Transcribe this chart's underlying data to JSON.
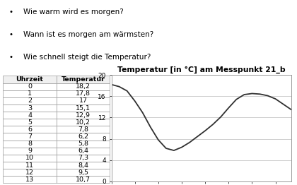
{
  "bullet_points": [
    "Wie warm wird es morgen?",
    "Wann ist es morgen am wärmsten?",
    "Wie schnell steigt die Temperatur?"
  ],
  "table_headers": [
    "Uhrzeit",
    "Temperatur"
  ],
  "hours": [
    0,
    1,
    2,
    3,
    4,
    5,
    6,
    7,
    8,
    9,
    10,
    11,
    12,
    13,
    14,
    15,
    16,
    17,
    18,
    19,
    20,
    21,
    22,
    23
  ],
  "temperatures": [
    18.2,
    17.8,
    17.0,
    15.1,
    12.9,
    10.2,
    7.8,
    6.2,
    5.8,
    6.4,
    7.3,
    8.4,
    9.5,
    10.7,
    12.1,
    13.8,
    15.4,
    16.3,
    16.5,
    16.4,
    16.1,
    15.5,
    14.5,
    13.5
  ],
  "table_hours": [
    0,
    1,
    2,
    3,
    4,
    5,
    6,
    7,
    8,
    9,
    10,
    11,
    12,
    13
  ],
  "table_temps": [
    "18,2",
    "17,8",
    "17",
    "15,1",
    "12,9",
    "10,2",
    "7,8",
    "6,2",
    "5,8",
    "6,4",
    "7,3",
    "8,4",
    "9,5",
    "10,7"
  ],
  "chart_title": "Temperatur [in °C] am Messpunkt 21_b",
  "xlim": [
    0,
    23
  ],
  "ylim": [
    0,
    20
  ],
  "yticks": [
    0,
    4,
    8,
    12,
    16,
    20
  ],
  "xticks": [
    0,
    3,
    6,
    9,
    12,
    15,
    18,
    21
  ],
  "line_color": "#303030",
  "bg_color": "#ffffff",
  "grid_color": "#bbbbbb",
  "bullet_fontsize": 7.5,
  "table_fontsize": 6.8,
  "chart_title_fontsize": 7.8,
  "tick_fontsize": 6.5
}
